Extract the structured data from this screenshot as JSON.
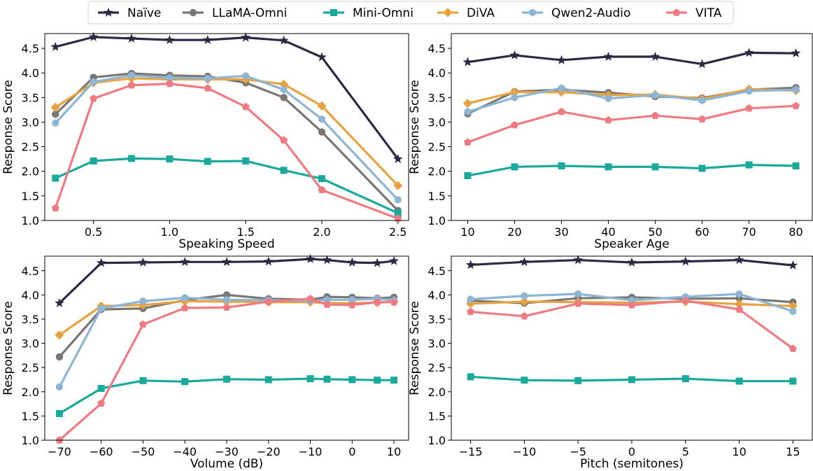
{
  "legend": [
    {
      "name": "Naïve",
      "color": "#2b2a45",
      "marker": "star"
    },
    {
      "name": "LLaMA-Omni",
      "color": "#7a7673",
      "marker": "circle"
    },
    {
      "name": "Mini-Omni",
      "color": "#1aa99a",
      "marker": "square"
    },
    {
      "name": "DiVA",
      "color": "#e7a340",
      "marker": "diamond"
    },
    {
      "name": "Qwen2-Audio",
      "color": "#8fb5d4",
      "marker": "hexagon"
    },
    {
      "name": "VITA",
      "color": "#ee7a82",
      "marker": "pentagon"
    }
  ],
  "chart_data": [
    {
      "type": "line",
      "xlabel": "Speaking Speed",
      "ylabel": "Response Score",
      "xlim": [
        0.18,
        2.57
      ],
      "ylim": [
        1.0,
        4.8
      ],
      "xticks": [
        0.5,
        1.0,
        1.5,
        2.0,
        2.5
      ],
      "xtick_labels": [
        "0.5",
        "1.0",
        "1.5",
        "2.0",
        "2.5"
      ],
      "yticks": [
        1.0,
        1.5,
        2.0,
        2.5,
        3.0,
        3.5,
        4.0,
        4.5
      ],
      "ytick_labels": [
        "1.0",
        "1.5",
        "2.0",
        "2.5",
        "3.0",
        "3.5",
        "4.0",
        "4.5"
      ],
      "x": [
        0.25,
        0.5,
        0.75,
        1.0,
        1.25,
        1.5,
        1.75,
        2.0,
        2.5
      ],
      "series": [
        {
          "name": "Naïve",
          "values": [
            4.53,
            4.73,
            4.7,
            4.67,
            4.67,
            4.72,
            4.66,
            4.32,
            2.25
          ]
        },
        {
          "name": "LLaMA-Omni",
          "values": [
            3.16,
            3.91,
            3.99,
            3.95,
            3.93,
            3.8,
            3.5,
            2.8,
            1.2
          ]
        },
        {
          "name": "Mini-Omni",
          "values": [
            1.86,
            2.21,
            2.26,
            2.25,
            2.2,
            2.21,
            2.02,
            1.85,
            1.15
          ]
        },
        {
          "name": "DiVA",
          "values": [
            3.3,
            3.8,
            3.89,
            3.87,
            3.87,
            3.87,
            3.77,
            3.33,
            1.71
          ]
        },
        {
          "name": "Qwen2-Audio",
          "values": [
            2.98,
            3.82,
            3.95,
            3.9,
            3.89,
            3.94,
            3.66,
            3.06,
            1.42
          ]
        },
        {
          "name": "VITA",
          "values": [
            1.25,
            3.48,
            3.75,
            3.78,
            3.69,
            3.31,
            2.63,
            1.62,
            1.04
          ]
        }
      ]
    },
    {
      "type": "line",
      "xlabel": "Speaker Age",
      "ylabel": "Response Score",
      "xlim": [
        6.5,
        83.5
      ],
      "ylim": [
        1.0,
        4.8
      ],
      "xticks": [
        10,
        20,
        30,
        40,
        50,
        60,
        70,
        80
      ],
      "xtick_labels": [
        "10",
        "20",
        "30",
        "40",
        "50",
        "60",
        "70",
        "80"
      ],
      "yticks": [
        1.0,
        1.5,
        2.0,
        2.5,
        3.0,
        3.5,
        4.0,
        4.5
      ],
      "ytick_labels": [
        "1.0",
        "1.5",
        "2.0",
        "2.5",
        "3.0",
        "3.5",
        "4.0",
        "4.5"
      ],
      "x": [
        10,
        20,
        30,
        40,
        50,
        60,
        70,
        80
      ],
      "series": [
        {
          "name": "Naïve",
          "values": [
            4.22,
            4.36,
            4.26,
            4.33,
            4.33,
            4.18,
            4.41,
            4.4
          ]
        },
        {
          "name": "LLaMA-Omni",
          "values": [
            3.17,
            3.62,
            3.66,
            3.6,
            3.52,
            3.49,
            3.66,
            3.7
          ]
        },
        {
          "name": "Mini-Omni",
          "values": [
            1.91,
            2.09,
            2.11,
            2.09,
            2.09,
            2.06,
            2.13,
            2.11
          ]
        },
        {
          "name": "DiVA",
          "values": [
            3.38,
            3.61,
            3.61,
            3.55,
            3.56,
            3.47,
            3.67,
            3.64
          ]
        },
        {
          "name": "Qwen2-Audio",
          "values": [
            3.21,
            3.5,
            3.69,
            3.48,
            3.55,
            3.44,
            3.63,
            3.66
          ]
        },
        {
          "name": "VITA",
          "values": [
            2.59,
            2.94,
            3.21,
            3.04,
            3.13,
            3.06,
            3.28,
            3.33
          ]
        }
      ]
    },
    {
      "type": "line",
      "xlabel": "Volume (dB)",
      "ylabel": "Response Score",
      "xlim": [
        -73.5,
        13.5
      ],
      "ylim": [
        1.0,
        4.8
      ],
      "xticks": [
        -70,
        -60,
        -50,
        -40,
        -30,
        -20,
        -10,
        0,
        10
      ],
      "xtick_labels": [
        "−70",
        "−60",
        "−50",
        "−40",
        "−30",
        "−20",
        "−10",
        "0",
        "10"
      ],
      "yticks": [
        1.0,
        1.5,
        2.0,
        2.5,
        3.0,
        3.5,
        4.0,
        4.5
      ],
      "ytick_labels": [
        "1.0",
        "1.5",
        "2.0",
        "2.5",
        "3.0",
        "3.5",
        "4.0",
        "4.5"
      ],
      "x": [
        -70,
        -60,
        -50,
        -40,
        -30,
        -20,
        -10,
        -6,
        0,
        6,
        10
      ],
      "series": [
        {
          "name": "Naïve",
          "values": [
            3.83,
            4.66,
            4.67,
            4.68,
            4.68,
            4.69,
            4.74,
            4.72,
            4.67,
            4.66,
            4.7
          ]
        },
        {
          "name": "LLaMA-Omni",
          "values": [
            2.72,
            3.7,
            3.72,
            3.89,
            4.0,
            3.92,
            3.9,
            3.96,
            3.95,
            3.93,
            3.95
          ]
        },
        {
          "name": "Mini-Omni",
          "values": [
            1.55,
            2.07,
            2.23,
            2.21,
            2.26,
            2.25,
            2.27,
            2.26,
            2.25,
            2.24,
            2.24
          ]
        },
        {
          "name": "DiVA",
          "values": [
            3.17,
            3.77,
            3.79,
            3.87,
            3.86,
            3.85,
            3.85,
            3.83,
            3.83,
            3.84,
            3.86
          ]
        },
        {
          "name": "Qwen2-Audio",
          "values": [
            2.1,
            3.72,
            3.87,
            3.94,
            3.9,
            3.89,
            3.88,
            3.9,
            3.9,
            3.92,
            3.89
          ]
        },
        {
          "name": "VITA",
          "values": [
            1.0,
            1.76,
            3.39,
            3.73,
            3.74,
            3.86,
            3.92,
            3.8,
            3.79,
            3.85,
            3.85
          ]
        }
      ]
    },
    {
      "type": "line",
      "xlabel": "Pitch (semitones)",
      "ylabel": "Response Score",
      "xlim": [
        -16.8,
        16.8
      ],
      "ylim": [
        1.0,
        4.8
      ],
      "xticks": [
        -15,
        -10,
        -5,
        0,
        5,
        10,
        15
      ],
      "xtick_labels": [
        "−15",
        "−10",
        "−5",
        "0",
        "5",
        "10",
        "15"
      ],
      "yticks": [
        1.0,
        1.5,
        2.0,
        2.5,
        3.0,
        3.5,
        4.0,
        4.5
      ],
      "ytick_labels": [
        "1.0",
        "1.5",
        "2.0",
        "2.5",
        "3.0",
        "3.5",
        "4.0",
        "4.5"
      ],
      "x": [
        -15,
        -10,
        -5,
        0,
        5,
        10,
        15
      ],
      "series": [
        {
          "name": "Naïve",
          "values": [
            4.62,
            4.68,
            4.72,
            4.67,
            4.69,
            4.72,
            4.61
          ]
        },
        {
          "name": "LLaMA-Omni",
          "values": [
            3.88,
            3.83,
            3.93,
            3.95,
            3.92,
            3.93,
            3.85
          ]
        },
        {
          "name": "Mini-Omni",
          "values": [
            2.31,
            2.24,
            2.23,
            2.25,
            2.27,
            2.22,
            2.22
          ]
        },
        {
          "name": "DiVA",
          "values": [
            3.82,
            3.86,
            3.85,
            3.84,
            3.86,
            3.81,
            3.77
          ]
        },
        {
          "name": "Qwen2-Audio",
          "values": [
            3.91,
            3.98,
            4.02,
            3.89,
            3.96,
            4.02,
            3.66
          ]
        },
        {
          "name": "VITA",
          "values": [
            3.65,
            3.56,
            3.82,
            3.79,
            3.88,
            3.7,
            2.89
          ]
        }
      ]
    }
  ]
}
